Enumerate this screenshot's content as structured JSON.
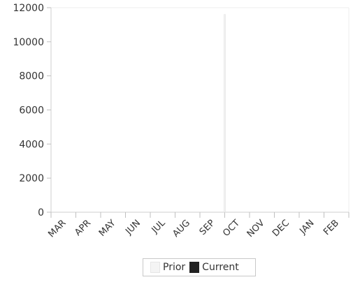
{
  "chart_data": {
    "type": "bar",
    "categories": [
      "MAR",
      "APR",
      "MAY",
      "JUN",
      "JUL",
      "AUG",
      "SEP",
      "OCT",
      "NOV",
      "DEC",
      "JAN",
      "FEB"
    ],
    "series": [
      {
        "name": "Prior",
        "color": "#f2f2f2",
        "values": [
          0,
          0,
          0,
          0,
          0,
          0,
          11600,
          0,
          0,
          0,
          0,
          0
        ]
      },
      {
        "name": "Current",
        "color": "#222222",
        "values": [
          0,
          0,
          0,
          0,
          0,
          0,
          0,
          0,
          0,
          0,
          0,
          0
        ]
      }
    ],
    "yticks": [
      0,
      2000,
      4000,
      6000,
      8000,
      10000,
      12000
    ],
    "ylim": [
      0,
      12000
    ],
    "grid": false,
    "legend_position": "bottom"
  }
}
